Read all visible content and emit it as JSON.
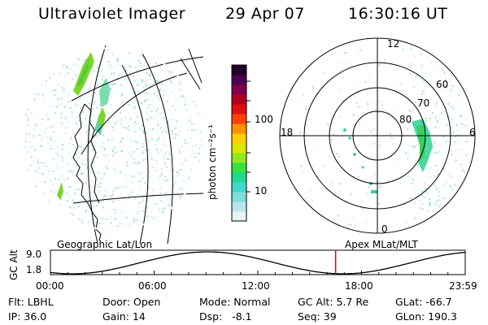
{
  "header": {
    "instrument": "Ultraviolet Imager",
    "date": "29 Apr 07",
    "time": "16:30:16 UT"
  },
  "colorbar": {
    "label": "photon cm⁻²s⁻¹",
    "ticks": [
      "100",
      "10"
    ],
    "colors": [
      "#e8f4f4",
      "#b8e6e6",
      "#7fdede",
      "#40d8c8",
      "#20d890",
      "#38e040",
      "#90e820",
      "#d8e800",
      "#ffd000",
      "#ff9000",
      "#ff4000",
      "#e01010",
      "#b00020",
      "#80004a",
      "#500050",
      "#200028"
    ]
  },
  "polar": {
    "ring_labels": [
      "60",
      "70",
      "80"
    ],
    "mlt_labels": {
      "top": "12",
      "left": "18",
      "right": "6",
      "bottom": "0"
    }
  },
  "timeline": {
    "axis_label": "GC Alt",
    "y_ticks": [
      "9.0",
      "1.8"
    ],
    "x_ticks": [
      "00:00",
      "06:00",
      "12:00",
      "18:00",
      "23:59"
    ],
    "left_caption": "Geographic Lat/Lon",
    "right_caption": "Apex MLat/MLT",
    "marker_time": "16:30",
    "marker_color": "#e00000"
  },
  "info": {
    "flt": "Flt: LBHL",
    "ip": "IP: 36.0",
    "door": "Door: Open",
    "gain": "Gain: 14",
    "mode": "Mode: Normal",
    "dsp": "Dsp:   -8.1",
    "gc_alt": "GC Alt: 5.7 Re",
    "seq": "Seq: 39",
    "glat": "GLat: -66.7",
    "glon": "GLon: 190.3"
  }
}
